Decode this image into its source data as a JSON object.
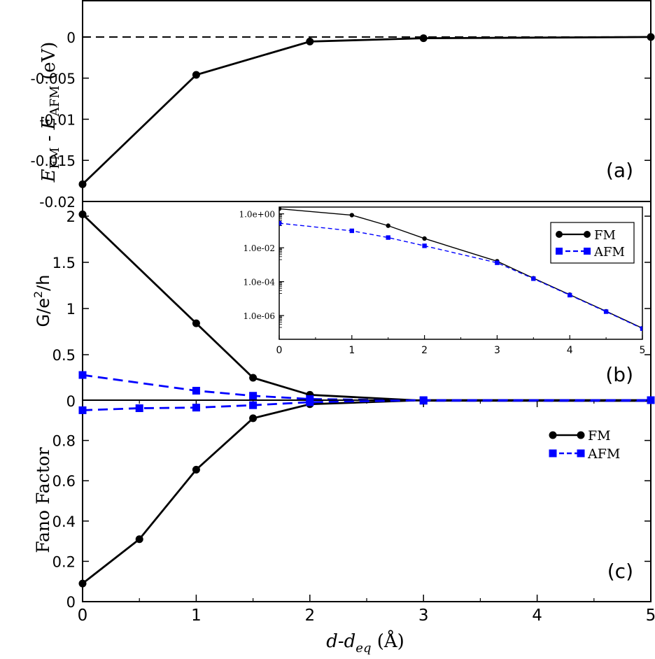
{
  "chart_data": [
    {
      "id": "a",
      "type": "line",
      "panel_label": "(a)",
      "title": "",
      "xlabel": "",
      "ylabel": {
        "e1": "E",
        "s1": "FM",
        "mid": " - E",
        "s2": "AFM",
        "tail": " (eV)"
      },
      "xlim": [
        0,
        5
      ],
      "ylim": [
        -0.02,
        0.0045
      ],
      "yticks": [
        0,
        -0.005,
        -0.01,
        -0.015,
        -0.02
      ],
      "ytick_labels": [
        "0",
        "-0.005",
        "-0.01",
        "-0.015",
        "-0.02"
      ],
      "reference_line": {
        "y": 0,
        "style": "dashed"
      },
      "series": [
        {
          "name": "FM-AFM",
          "color": "#000000",
          "marker": "circle",
          "dash": "solid",
          "x": [
            0,
            1,
            2,
            3,
            5
          ],
          "y": [
            -0.0179,
            -0.0046,
            -0.00055,
            -0.00015,
            0.0
          ]
        }
      ]
    },
    {
      "id": "b",
      "type": "line",
      "panel_label": "(b)",
      "title": "",
      "xlabel": "",
      "ylabel": {
        "base": "G/e",
        "sup": "2",
        "tail": "/h"
      },
      "xlim": [
        0,
        5
      ],
      "ylim": [
        0,
        2.1
      ],
      "yticks": [
        0,
        0.5,
        1,
        1.5,
        2
      ],
      "ytick_labels": [
        "0",
        "0.5",
        "1",
        "1.5",
        "2"
      ],
      "series": [
        {
          "name": "FM",
          "color": "#000000",
          "marker": "circle",
          "dash": "solid",
          "x": [
            0,
            1,
            1.5,
            2,
            3,
            5
          ],
          "y": [
            2.02,
            0.84,
            0.25,
            0.065,
            0.002,
            0.0
          ]
        },
        {
          "name": "AFM",
          "color": "#0000ff",
          "marker": "square",
          "dash": "dashed",
          "x": [
            0,
            1,
            1.5,
            2,
            3,
            5
          ],
          "y": [
            0.28,
            0.11,
            0.055,
            0.02,
            0.0015,
            0.0
          ]
        }
      ],
      "inset": {
        "type": "line",
        "scale": "log",
        "xlim": [
          0,
          5
        ],
        "xticks": [
          0,
          1,
          2,
          3,
          4,
          5
        ],
        "xtick_labels": [
          "0",
          "1",
          "2",
          "3",
          "4",
          "5"
        ],
        "ylim_log10": [
          -7.4,
          0.4
        ],
        "yticks_log10": [
          0,
          -2,
          -4,
          -6
        ],
        "ytick_labels": [
          "1.0e+00",
          "1.0e-02",
          "1.0e-04",
          "1.0e-06"
        ],
        "legend": {
          "position": "top-right",
          "entries": [
            "FM",
            "AFM"
          ]
        },
        "series": [
          {
            "name": "FM",
            "color": "#000000",
            "marker": "circle",
            "dash": "solid",
            "x": [
              0,
              1,
              1.5,
              2,
              3,
              3.5,
              4,
              4.5,
              5
            ],
            "y": [
              2.0,
              0.84,
              0.2,
              0.035,
              0.0016,
              0.00016,
              1.7e-05,
              1.8e-06,
              1.8e-07
            ]
          },
          {
            "name": "AFM",
            "color": "#0000ff",
            "marker": "square",
            "dash": "dashed",
            "x": [
              0,
              1,
              1.5,
              2,
              3,
              3.5,
              4,
              4.5,
              5
            ],
            "y": [
              0.28,
              0.1,
              0.04,
              0.013,
              0.0013,
              0.00015,
              1.6e-05,
              1.7e-06,
              1.7e-07
            ]
          }
        ]
      }
    },
    {
      "id": "c",
      "type": "line",
      "panel_label": "(c)",
      "title": "",
      "xlabel": {
        "d1": "d",
        "dash": "-",
        "d2": "d",
        "sub": "eq",
        "unit": " (Å)"
      },
      "ylabel": "Fano Factor",
      "xlim": [
        0,
        5
      ],
      "xticks": [
        0,
        1,
        2,
        3,
        4,
        5
      ],
      "xtick_labels": [
        "0",
        "1",
        "2",
        "3",
        "4",
        "5"
      ],
      "ylim": [
        0,
        1
      ],
      "yticks": [
        0,
        0.2,
        0.4,
        0.6,
        0.8
      ],
      "ytick_labels": [
        "0",
        "0.2",
        "0.4",
        "0.6",
        "0.8"
      ],
      "legend": {
        "position": "top-right",
        "entries": [
          "FM",
          "AFM"
        ]
      },
      "series": [
        {
          "name": "FM",
          "color": "#000000",
          "marker": "circle",
          "dash": "solid",
          "x": [
            0,
            0.5,
            1,
            1.5,
            2,
            3,
            5
          ],
          "y": [
            0.09,
            0.31,
            0.655,
            0.91,
            0.98,
            1.0,
            1.0
          ]
        },
        {
          "name": "AFM",
          "color": "#0000ff",
          "marker": "square",
          "dash": "dashed",
          "x": [
            0,
            0.5,
            1,
            1.5,
            2,
            3,
            5
          ],
          "y": [
            0.95,
            0.96,
            0.963,
            0.975,
            0.99,
            1.0,
            1.0
          ]
        }
      ]
    }
  ]
}
